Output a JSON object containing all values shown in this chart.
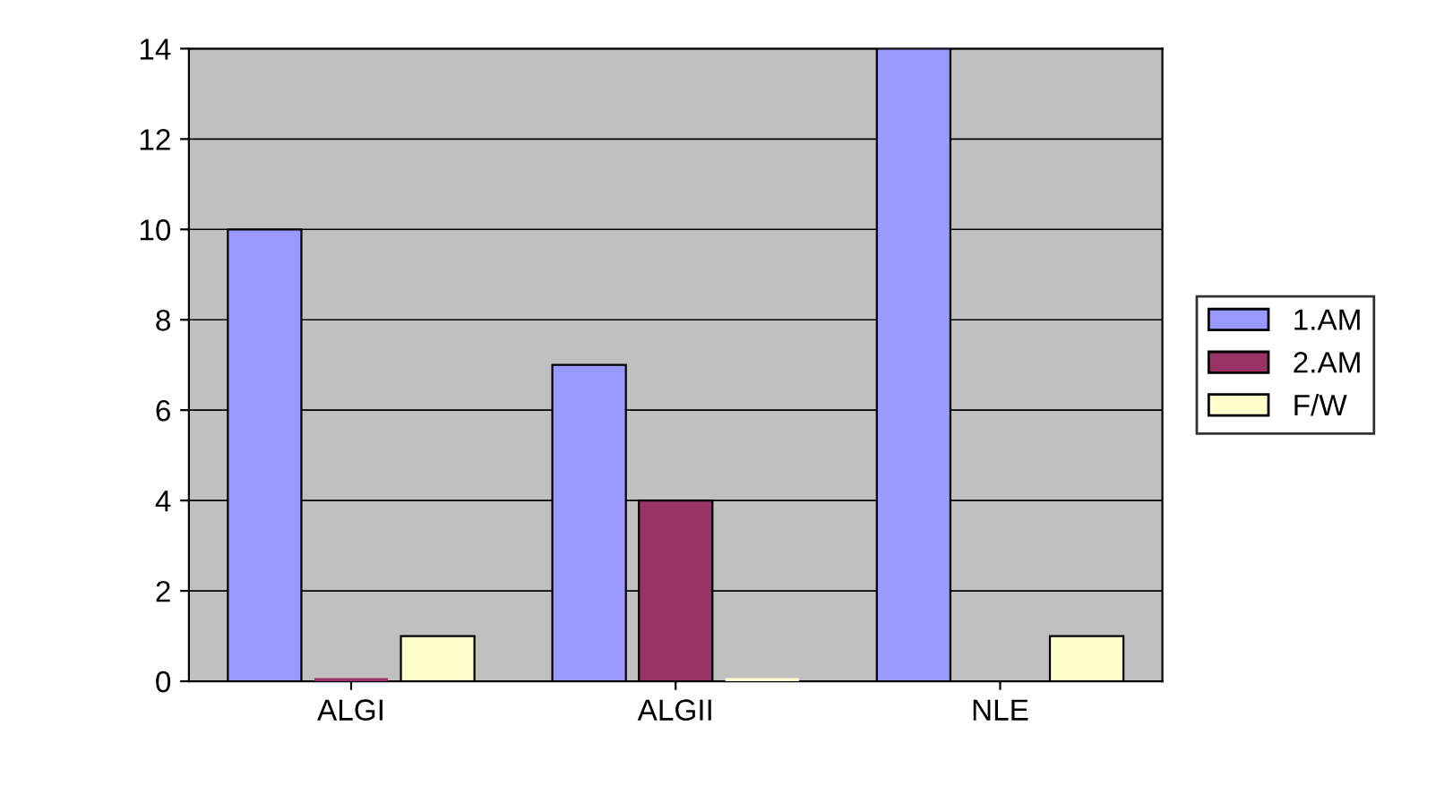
{
  "chart_data": {
    "type": "bar",
    "categories": [
      "ALGI",
      "ALGII",
      "NLE"
    ],
    "series": [
      {
        "name": "1.AM",
        "color": "#9999ff",
        "values": [
          10,
          7,
          14
        ]
      },
      {
        "name": "2.AM",
        "color": "#993366",
        "values": [
          0,
          4,
          null
        ]
      },
      {
        "name": "F/W",
        "color": "#ffffcc",
        "values": [
          1,
          0,
          1
        ]
      }
    ],
    "ylim": [
      0,
      14
    ],
    "yticks": [
      0,
      2,
      4,
      6,
      8,
      10,
      12,
      14
    ],
    "grid": "y",
    "legend": "right"
  }
}
